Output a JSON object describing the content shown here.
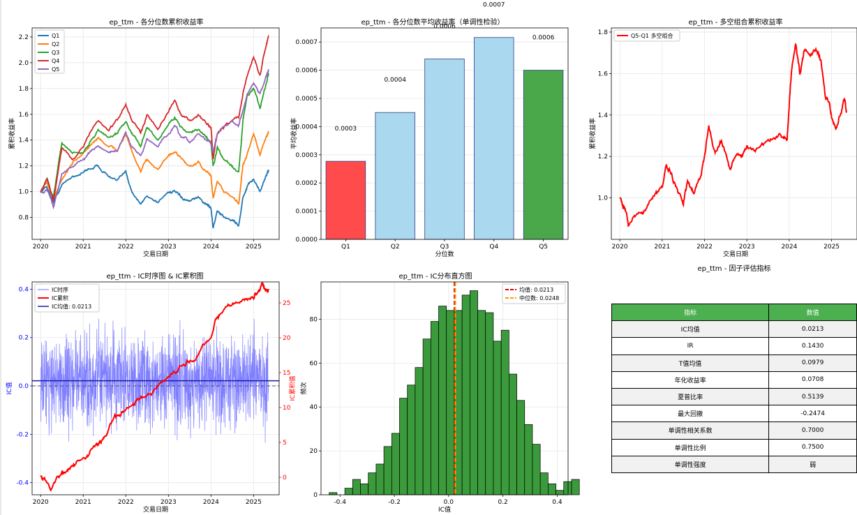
{
  "colors": {
    "Q1": "#1f77b4",
    "Q2": "#ff7f0e",
    "Q3": "#2ca02c",
    "Q4": "#d62728",
    "Q5": "#9467bd",
    "red": "#ff0000",
    "blue": "#0000ff",
    "ic_line": "#6a6aff",
    "bar_red": "#ff4b4b",
    "bar_blue": "#aad8ee",
    "bar_green": "#4aa84a",
    "hist": "#3b9a3b",
    "median": "#ff9900",
    "header": "#4caf50"
  },
  "metrics": {
    "title": "ep_ttm - 因子评估指标",
    "headers": [
      "指标",
      "数值"
    ],
    "rows": [
      [
        "IC均值",
        "0.0213"
      ],
      [
        "IR",
        "0.1430"
      ],
      [
        "T值均值",
        "0.0979"
      ],
      [
        "年化收益率",
        "0.0708"
      ],
      [
        "夏普比率",
        "0.5139"
      ],
      [
        "最大回撤",
        "-0.2474"
      ],
      [
        "单调性相关系数",
        "0.7000"
      ],
      [
        "单调性比例",
        "0.7500"
      ],
      [
        "单调性强度",
        "弱"
      ]
    ]
  },
  "chart_data": [
    {
      "id": "quantile_cum",
      "type": "line",
      "title": "ep_ttm - 各分位数累积收益率",
      "xlabel": "交易日期",
      "ylabel": "累积收益率",
      "x_ticks": [
        "2020",
        "2021",
        "2022",
        "2023",
        "2024",
        "2025"
      ],
      "xlim": [
        2019.8,
        2025.6
      ],
      "ylim": [
        0.63,
        2.27
      ],
      "y_ticks": [
        0.8,
        1.0,
        1.2,
        1.4,
        1.6,
        1.8,
        2.0,
        2.2
      ],
      "legend": "top-left",
      "grid": true,
      "series": [
        {
          "name": "Q1",
          "x": [
            2020.0,
            2020.15,
            2020.3,
            2020.5,
            2020.75,
            2021.0,
            2021.15,
            2021.35,
            2021.6,
            2021.8,
            2022.0,
            2022.15,
            2022.35,
            2022.5,
            2022.75,
            2023.0,
            2023.15,
            2023.3,
            2023.5,
            2023.7,
            2023.9,
            2024.0,
            2024.05,
            2024.15,
            2024.3,
            2024.5,
            2024.65,
            2024.75,
            2024.85,
            2025.0,
            2025.15,
            2025.3,
            2025.35
          ],
          "y": [
            1.0,
            1.04,
            0.92,
            1.05,
            1.12,
            1.15,
            1.18,
            1.2,
            1.12,
            1.08,
            1.15,
            1.0,
            0.9,
            0.97,
            0.92,
            1.0,
            1.0,
            0.95,
            0.92,
            0.95,
            0.9,
            0.88,
            0.72,
            0.85,
            0.8,
            0.78,
            0.74,
            0.95,
            1.03,
            1.1,
            1.0,
            1.13,
            1.17
          ]
        },
        {
          "name": "Q2",
          "x": [
            2020.0,
            2020.15,
            2020.3,
            2020.5,
            2020.75,
            2021.0,
            2021.15,
            2021.35,
            2021.6,
            2021.8,
            2022.0,
            2022.15,
            2022.35,
            2022.5,
            2022.75,
            2023.0,
            2023.15,
            2023.3,
            2023.5,
            2023.7,
            2023.9,
            2024.0,
            2024.05,
            2024.15,
            2024.3,
            2024.5,
            2024.65,
            2024.75,
            2024.85,
            2025.0,
            2025.15,
            2025.3,
            2025.35
          ],
          "y": [
            1.0,
            1.08,
            0.93,
            1.1,
            1.22,
            1.3,
            1.35,
            1.42,
            1.35,
            1.32,
            1.45,
            1.3,
            1.15,
            1.25,
            1.18,
            1.28,
            1.3,
            1.25,
            1.2,
            1.22,
            1.15,
            1.12,
            0.95,
            1.08,
            1.0,
            0.95,
            0.9,
            1.2,
            1.3,
            1.45,
            1.3,
            1.42,
            1.47
          ]
        },
        {
          "name": "Q3",
          "x": [
            2020.0,
            2020.15,
            2020.3,
            2020.5,
            2020.75,
            2021.0,
            2021.15,
            2021.35,
            2021.6,
            2021.8,
            2022.0,
            2022.15,
            2022.35,
            2022.5,
            2022.75,
            2023.0,
            2023.15,
            2023.3,
            2023.5,
            2023.7,
            2023.9,
            2024.0,
            2024.05,
            2024.15,
            2024.3,
            2024.5,
            2024.65,
            2024.75,
            2024.85,
            2025.0,
            2025.15,
            2025.3,
            2025.35
          ],
          "y": [
            1.0,
            1.1,
            0.95,
            1.38,
            1.3,
            1.3,
            1.38,
            1.48,
            1.42,
            1.45,
            1.55,
            1.45,
            1.35,
            1.5,
            1.4,
            1.52,
            1.58,
            1.5,
            1.45,
            1.48,
            1.42,
            1.38,
            1.2,
            1.33,
            1.25,
            1.2,
            1.15,
            1.55,
            1.75,
            1.8,
            1.65,
            1.85,
            1.92
          ]
        },
        {
          "name": "Q4",
          "x": [
            2020.0,
            2020.15,
            2020.3,
            2020.5,
            2020.75,
            2021.0,
            2021.15,
            2021.35,
            2021.6,
            2021.8,
            2022.0,
            2022.15,
            2022.35,
            2022.5,
            2022.75,
            2023.0,
            2023.15,
            2023.3,
            2023.5,
            2023.7,
            2023.9,
            2024.0,
            2024.05,
            2024.15,
            2024.3,
            2024.5,
            2024.65,
            2024.75,
            2024.85,
            2025.0,
            2025.15,
            2025.3,
            2025.35
          ],
          "y": [
            1.0,
            1.1,
            0.92,
            1.35,
            1.25,
            1.35,
            1.45,
            1.55,
            1.48,
            1.55,
            1.68,
            1.55,
            1.45,
            1.6,
            1.5,
            1.62,
            1.7,
            1.6,
            1.55,
            1.6,
            1.52,
            1.5,
            1.25,
            1.45,
            1.5,
            1.55,
            1.58,
            1.75,
            1.9,
            2.05,
            1.9,
            2.15,
            2.2
          ]
        },
        {
          "name": "Q5",
          "x": [
            2020.0,
            2020.15,
            2020.3,
            2020.5,
            2020.75,
            2021.0,
            2021.15,
            2021.35,
            2021.6,
            2021.8,
            2022.0,
            2022.15,
            2022.35,
            2022.5,
            2022.75,
            2023.0,
            2023.15,
            2023.3,
            2023.5,
            2023.7,
            2023.9,
            2024.0,
            2024.05,
            2024.15,
            2024.3,
            2024.5,
            2024.65,
            2024.75,
            2024.85,
            2025.0,
            2025.15,
            2025.3,
            2025.35
          ],
          "y": [
            1.0,
            1.02,
            0.88,
            1.15,
            1.2,
            1.25,
            1.3,
            1.35,
            1.3,
            1.32,
            1.45,
            1.35,
            1.28,
            1.4,
            1.35,
            1.45,
            1.5,
            1.42,
            1.38,
            1.45,
            1.4,
            1.38,
            1.3,
            1.45,
            1.5,
            1.55,
            1.52,
            1.62,
            1.75,
            1.85,
            1.75,
            1.9,
            1.95
          ]
        }
      ]
    },
    {
      "id": "quantile_mean",
      "type": "bar",
      "title": "ep_ttm - 各分位数平均收益率（单调性检验）",
      "xlabel": "分位数",
      "ylabel": "平均收益率",
      "categories": [
        "Q1",
        "Q2",
        "Q3",
        "Q4",
        "Q5"
      ],
      "values": [
        0.000277,
        0.00045,
        0.00064,
        0.000716,
        0.0006
      ],
      "labels": [
        "0.0003",
        "0.0004",
        "0.0006",
        "0.0007",
        "0.0006"
      ],
      "bar_colors": [
        "bar_red",
        "bar_blue",
        "bar_blue",
        "bar_blue",
        "bar_green"
      ],
      "ylim": [
        0,
        0.00075
      ],
      "y_ticks": [
        "0.0000",
        "0.0001",
        "0.0002",
        "0.0003",
        "0.0004",
        "0.0005",
        "0.0006",
        "0.0007"
      ],
      "grid": true
    },
    {
      "id": "long_short",
      "type": "line",
      "title": "ep_ttm - 多空组合累积收益率",
      "xlabel": "交易日期",
      "ylabel": "累积收益率",
      "x_ticks": [
        "2020",
        "2021",
        "2022",
        "2023",
        "2024",
        "2025"
      ],
      "xlim": [
        2019.8,
        2025.6
      ],
      "ylim": [
        0.8,
        1.82
      ],
      "y_ticks": [
        1.0,
        1.2,
        1.4,
        1.6,
        1.8
      ],
      "legend": "top-left",
      "grid": true,
      "series": [
        {
          "name": "Q5-Q1 多空组合",
          "x": [
            2020.0,
            2020.1,
            2020.2,
            2020.4,
            2020.6,
            2020.8,
            2021.0,
            2021.1,
            2021.2,
            2021.35,
            2021.5,
            2021.6,
            2021.75,
            2021.9,
            2022.0,
            2022.1,
            2022.25,
            2022.4,
            2022.6,
            2022.75,
            2022.9,
            2023.0,
            2023.2,
            2023.4,
            2023.6,
            2023.8,
            2023.95,
            2024.0,
            2024.05,
            2024.15,
            2024.25,
            2024.35,
            2024.5,
            2024.65,
            2024.75,
            2024.85,
            2024.95,
            2025.0,
            2025.1,
            2025.2,
            2025.3,
            2025.35
          ],
          "y": [
            1.0,
            0.95,
            0.88,
            0.93,
            0.95,
            1.0,
            1.05,
            1.18,
            1.12,
            1.05,
            0.97,
            1.08,
            1.02,
            1.1,
            1.2,
            1.35,
            1.22,
            1.28,
            1.15,
            1.22,
            1.2,
            1.25,
            1.22,
            1.25,
            1.28,
            1.3,
            1.28,
            1.45,
            1.6,
            1.75,
            1.6,
            1.72,
            1.7,
            1.7,
            1.65,
            1.5,
            1.45,
            1.38,
            1.33,
            1.4,
            1.48,
            1.42
          ]
        }
      ]
    },
    {
      "id": "ic_series",
      "type": "line",
      "title": "ep_ttm - IC时序图 & IC累积图",
      "xlabel": "交易日期",
      "ylabel": "IC值",
      "ylabel_right": "IC累积值",
      "x_ticks": [
        "2020",
        "2021",
        "2022",
        "2023",
        "2024",
        "2025"
      ],
      "xlim": [
        2019.8,
        2025.6
      ],
      "ylim": [
        -0.45,
        0.43
      ],
      "y_ticks": [
        -0.4,
        -0.2,
        0.0,
        0.2,
        0.4
      ],
      "ylim_right": [
        -2.5,
        28
      ],
      "y_ticks_right": [
        0,
        5,
        10,
        15,
        20,
        25
      ],
      "ic_mean": 0.0213,
      "ic_dashed": 0.0,
      "legend": "top-left",
      "legend_entries": [
        "IC时序",
        "IC累积",
        "IC均值: 0.0213"
      ],
      "grid": true,
      "series": [
        {
          "name": "IC累积",
          "axis": "right",
          "x": [
            2020.0,
            2020.1,
            2020.25,
            2020.4,
            2020.55,
            2020.7,
            2020.85,
            2021.0,
            2021.15,
            2021.3,
            2021.4,
            2021.55,
            2021.7,
            2021.85,
            2022.0,
            2022.2,
            2022.4,
            2022.6,
            2022.8,
            2023.0,
            2023.2,
            2023.4,
            2023.6,
            2023.8,
            2024.0,
            2024.1,
            2024.2,
            2024.4,
            2024.6,
            2024.8,
            2025.0,
            2025.1,
            2025.2,
            2025.3,
            2025.35
          ],
          "y": [
            0,
            -0.2,
            -1.5,
            0.2,
            0.8,
            1.2,
            2.0,
            2.5,
            3.5,
            4.8,
            5.0,
            6.0,
            8.5,
            9.0,
            10.0,
            10.8,
            11.5,
            11.8,
            13.5,
            14.5,
            15.2,
            16.3,
            16.8,
            18.5,
            20.0,
            22.5,
            23.5,
            24.5,
            25.0,
            25.5,
            25.8,
            26.5,
            27.5,
            26.8,
            27.0
          ]
        }
      ]
    },
    {
      "id": "ic_hist",
      "type": "bar",
      "title": "ep_ttm - IC分布直方图",
      "xlabel": "IC值",
      "ylabel": "频次",
      "bin_start": -0.44,
      "bin_width": 0.0288,
      "counts": [
        1,
        0,
        3,
        7,
        5,
        10,
        14,
        22,
        28,
        44,
        50,
        58,
        71,
        79,
        86,
        84,
        84,
        91,
        93,
        84,
        83,
        70,
        75,
        55,
        43,
        32,
        23,
        10,
        5,
        2,
        6,
        7
      ],
      "xlim": [
        -0.47,
        0.44
      ],
      "x_ticks": [
        -0.4,
        -0.2,
        0.0,
        0.2,
        0.4
      ],
      "ylim": [
        0,
        97
      ],
      "y_ticks": [
        0,
        20,
        40,
        60,
        80
      ],
      "mean": 0.0213,
      "median": 0.0248,
      "legend_entries": [
        "均值: 0.0213",
        "中位数: 0.0248"
      ],
      "legend": "top-right",
      "grid": true
    }
  ]
}
